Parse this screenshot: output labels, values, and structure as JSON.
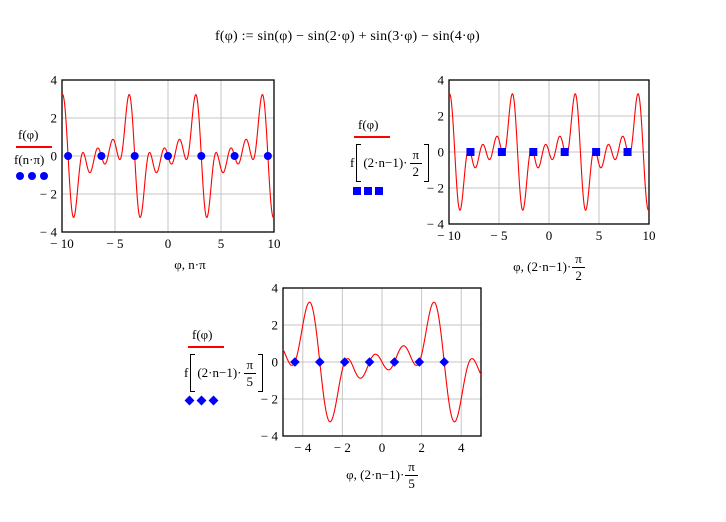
{
  "formula": {
    "text": "f(φ) := sin(φ) − sin(2·φ) + sin(3·φ) − sin(4·φ)"
  },
  "colors": {
    "curve": "#ff0000",
    "marker": "#0000ff",
    "grid": "#c6c6c6",
    "box": "#000000",
    "text": "#000000"
  },
  "chart_data": [
    {
      "type": "line+scatter",
      "function": "f(φ) = sin(φ) − sin(2·φ) + sin(3·φ) − sin(4·φ)",
      "xlim": [
        -10,
        10
      ],
      "ylim": [
        -4,
        4
      ],
      "x_ticks": [
        -10,
        -5,
        0,
        5,
        10
      ],
      "x_tick_labels": [
        "− 10",
        "− 5",
        "0",
        "5",
        "10"
      ],
      "y_ticks": [
        4,
        2,
        0,
        -2,
        -4
      ],
      "y_tick_labels": [
        "4",
        "2",
        "0",
        "− 2",
        "− 4"
      ],
      "grid": true,
      "xlabel": "φ, n·π",
      "legend": {
        "trace1": "f(φ)",
        "trace2": "f(n·π)"
      },
      "series": [
        {
          "name": "f(φ)",
          "kind": "line",
          "color": "#ff0000",
          "terms": [
            {
              "coef": 1,
              "freq": 1
            },
            {
              "coef": -1,
              "freq": 2
            },
            {
              "coef": 1,
              "freq": 3
            },
            {
              "coef": -1,
              "freq": 4
            }
          ]
        },
        {
          "name": "f(n·π)",
          "kind": "scatter",
          "marker": "circle",
          "color": "#0000ff",
          "x": [
            -9.4248,
            -6.2832,
            -3.1416,
            0,
            3.1416,
            6.2832,
            9.4248
          ],
          "y": [
            0,
            0,
            0,
            0,
            0,
            0,
            0
          ]
        }
      ]
    },
    {
      "type": "line+scatter",
      "function": "f(φ) = sin(φ) − sin(2·φ) + sin(3·φ) − sin(4·φ)",
      "xlim": [
        -10,
        10
      ],
      "ylim": [
        -4,
        4
      ],
      "x_ticks": [
        -10,
        -5,
        0,
        5,
        10
      ],
      "x_tick_labels": [
        "− 10",
        "− 5",
        "0",
        "5",
        "10"
      ],
      "y_ticks": [
        4,
        2,
        0,
        -2,
        -4
      ],
      "y_tick_labels": [
        "4",
        "2",
        "0",
        "− 2",
        "− 4"
      ],
      "grid": true,
      "xlabel": "φ, (2·n−1)·π/2",
      "xlabel_prefix": "φ, (2·n−1)·",
      "xlabel_frac_num": "π",
      "xlabel_frac_den": "2",
      "legend": {
        "trace1": "f(φ)",
        "trace2_prefix": "f",
        "trace2_inner": "(2·n−1)·",
        "frac_num": "π",
        "frac_den": "2"
      },
      "series": [
        {
          "name": "f(φ)",
          "kind": "line",
          "color": "#ff0000",
          "terms": [
            {
              "coef": 1,
              "freq": 1
            },
            {
              "coef": -1,
              "freq": 2
            },
            {
              "coef": 1,
              "freq": 3
            },
            {
              "coef": -1,
              "freq": 4
            }
          ]
        },
        {
          "name": "f((2·n−1)·π/2)",
          "kind": "scatter",
          "marker": "square",
          "color": "#0000ff",
          "x": [
            -7.854,
            -4.7124,
            -1.5708,
            1.5708,
            4.7124,
            7.854
          ],
          "y": [
            0,
            0,
            0,
            0,
            0,
            0
          ]
        }
      ]
    },
    {
      "type": "line+scatter",
      "function": "f(φ) = sin(φ) − sin(2·φ) + sin(3·φ) − sin(4·φ)",
      "xlim": [
        -5,
        5
      ],
      "ylim": [
        -4,
        4
      ],
      "x_ticks": [
        -4,
        -2,
        0,
        2,
        4
      ],
      "x_tick_labels": [
        "− 4",
        "− 2",
        "0",
        "2",
        "4"
      ],
      "y_ticks": [
        4,
        2,
        0,
        -2,
        -4
      ],
      "y_tick_labels": [
        "4",
        "2",
        "0",
        "− 2",
        "− 4"
      ],
      "grid": true,
      "xlabel": "φ, (2·n−1)·π/5",
      "xlabel_prefix": "φ, (2·n−1)·",
      "xlabel_frac_num": "π",
      "xlabel_frac_den": "5",
      "legend": {
        "trace1": "f(φ)",
        "trace2_prefix": "f",
        "trace2_inner": "(2·n−1)·",
        "frac_num": "π",
        "frac_den": "5"
      },
      "series": [
        {
          "name": "f(φ)",
          "kind": "line",
          "color": "#ff0000",
          "terms": [
            {
              "coef": 1,
              "freq": 1
            },
            {
              "coef": -1,
              "freq": 2
            },
            {
              "coef": 1,
              "freq": 3
            },
            {
              "coef": -1,
              "freq": 4
            }
          ]
        },
        {
          "name": "f((2·n−1)·π/5)",
          "kind": "scatter",
          "marker": "diamond",
          "color": "#0000ff",
          "x": [
            -4.3982,
            -3.1416,
            -1.885,
            -0.6283,
            0.6283,
            1.885,
            3.1416
          ],
          "y": [
            0,
            0,
            0,
            0,
            0,
            0,
            0
          ]
        }
      ]
    }
  ]
}
